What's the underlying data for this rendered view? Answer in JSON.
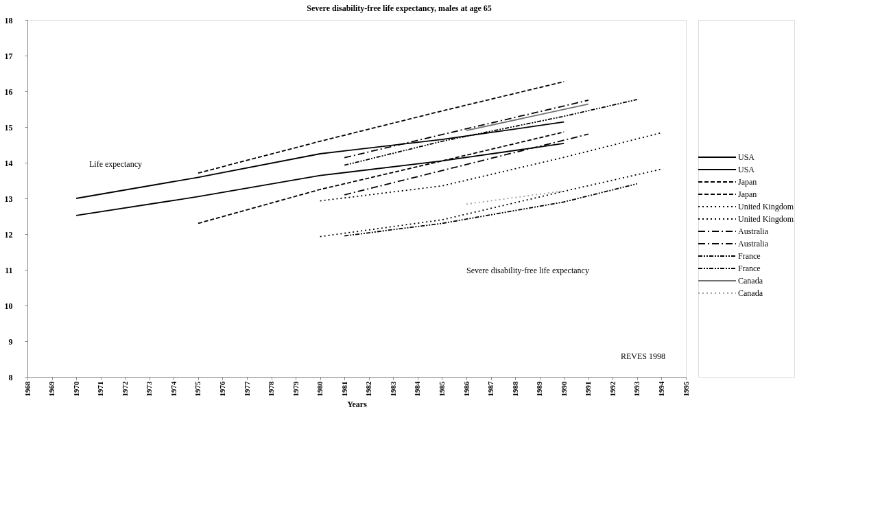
{
  "chart_data": {
    "type": "line",
    "title": "Severe disability-free life expectancy, males at age 65",
    "xlabel": "Years",
    "xlim": [
      1968,
      1995
    ],
    "xticks": [
      1968,
      1969,
      1970,
      1971,
      1972,
      1973,
      1974,
      1975,
      1976,
      1977,
      1978,
      1979,
      1980,
      1981,
      1982,
      1983,
      1984,
      1985,
      1986,
      1987,
      1988,
      1989,
      1990,
      1991,
      1992,
      1993,
      1994,
      1995
    ],
    "ylim": [
      8,
      18
    ],
    "yticks": [
      8,
      9,
      10,
      11,
      12,
      13,
      14,
      15,
      16,
      17,
      18
    ],
    "grid": false,
    "legend": "right",
    "marker": "none",
    "series": [
      {
        "name": "USA",
        "color": "#000000",
        "line_style": "solid",
        "x": [
          1970,
          1975,
          1980,
          1985,
          1990
        ],
        "values": [
          13.0,
          13.59,
          14.25,
          14.65,
          15.14
        ]
      },
      {
        "name": "USA",
        "color": "#000000",
        "line_style": "solid",
        "x": [
          1970,
          1975,
          1980,
          1985,
          1990
        ],
        "values": [
          12.52,
          13.05,
          13.64,
          14.05,
          14.54
        ]
      },
      {
        "name": "Japan",
        "color": "#000000",
        "line_style": "dashed",
        "x": [
          1975,
          1980,
          1985,
          1990
        ],
        "values": [
          13.71,
          14.6,
          15.45,
          16.27
        ]
      },
      {
        "name": "Japan",
        "color": "#000000",
        "line_style": "dashed",
        "x": [
          1975,
          1980,
          1985,
          1990
        ],
        "values": [
          12.3,
          13.25,
          14.05,
          14.86
        ]
      },
      {
        "name": "United Kingdom",
        "color": "#000000",
        "line_style": "dotted",
        "x": [
          1980,
          1985,
          1990,
          1994
        ],
        "values": [
          12.93,
          13.35,
          14.15,
          14.84
        ]
      },
      {
        "name": "United Kingdom",
        "color": "#000000",
        "line_style": "dotted",
        "x": [
          1980,
          1985,
          1990,
          1994
        ],
        "values": [
          11.93,
          12.4,
          13.2,
          13.82
        ]
      },
      {
        "name": "Australia",
        "color": "#000000",
        "line_style": "dashdot",
        "x": [
          1981,
          1986,
          1991
        ],
        "values": [
          14.14,
          14.95,
          15.75
        ]
      },
      {
        "name": "Australia",
        "color": "#000000",
        "line_style": "dashdot",
        "x": [
          1981,
          1986,
          1991
        ],
        "values": [
          13.1,
          13.95,
          14.8
        ]
      },
      {
        "name": "France",
        "color": "#000000",
        "line_style": "dashdotdot",
        "x": [
          1981,
          1985,
          1990,
          1993
        ],
        "values": [
          13.93,
          14.6,
          15.3,
          15.77
        ]
      },
      {
        "name": "France",
        "color": "#000000",
        "line_style": "dashdotdot",
        "x": [
          1981,
          1985,
          1990,
          1993
        ],
        "values": [
          11.95,
          12.3,
          12.9,
          13.41
        ]
      },
      {
        "name": "Canada",
        "color": "#707070",
        "line_style": "solid",
        "x": [
          1986,
          1991
        ],
        "values": [
          14.9,
          15.64
        ]
      },
      {
        "name": "Canada",
        "color": "#a0a0a0",
        "line_style": "dotted",
        "x": [
          1986,
          1990
        ],
        "values": [
          12.84,
          13.21
        ]
      }
    ],
    "annotations": [
      "Life expectancy",
      "Severe disability-free life expectancy",
      "REVES 1998"
    ]
  }
}
